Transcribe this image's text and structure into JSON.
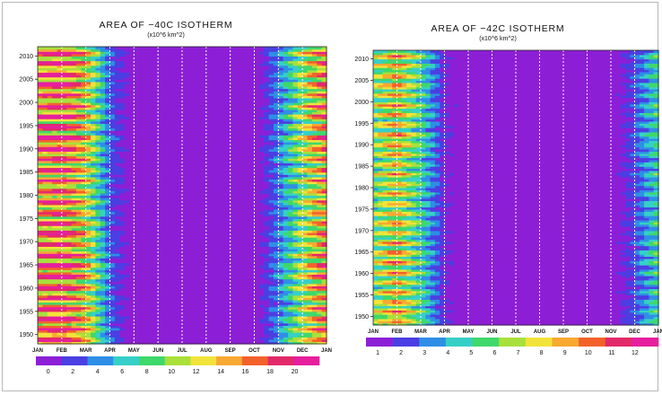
{
  "chart_data": [
    {
      "type": "heatmap",
      "title": "AREA OF −40C ISOTHERM",
      "subtitle": "(x10^6 km^2)",
      "x_categories": [
        "JAN",
        "FEB",
        "MAR",
        "APR",
        "MAY",
        "JUN",
        "JUL",
        "AUG",
        "SEP",
        "OCT",
        "NOV",
        "DEC",
        "JAN"
      ],
      "y_ticks": [
        1950,
        1955,
        1960,
        1965,
        1970,
        1975,
        1980,
        1985,
        1990,
        1995,
        2000,
        2005,
        2010
      ],
      "ylim": [
        1948,
        2012
      ],
      "colorbar_ticks": [
        0,
        2,
        4,
        6,
        8,
        10,
        12,
        14,
        16,
        18,
        20
      ],
      "colorbar_range": [
        -1,
        22
      ],
      "vmax": 21,
      "monthly_profile": [
        15.5,
        17.0,
        13.0,
        3.5,
        0.5,
        0.0,
        0.0,
        0.0,
        0.0,
        0.3,
        4.5,
        10.5,
        15.5
      ],
      "colors": [
        "#8c1fd6",
        "#4a3fe3",
        "#2f8ee6",
        "#36d0c8",
        "#3fd86a",
        "#a8e03c",
        "#f2e33a",
        "#f7a932",
        "#f3622b",
        "#e22a6a",
        "#e61f9e"
      ]
    },
    {
      "type": "heatmap",
      "title": "AREA OF −42C ISOTHERM",
      "subtitle": "(x10^6 km^2)",
      "x_categories": [
        "JAN",
        "FEB",
        "MAR",
        "APR",
        "MAY",
        "JUN",
        "JUL",
        "AUG",
        "SEP",
        "OCT",
        "NOV",
        "DEC",
        "JAN"
      ],
      "y_ticks": [
        1950,
        1955,
        1960,
        1965,
        1970,
        1975,
        1980,
        1985,
        1990,
        1995,
        2000,
        2005,
        2010
      ],
      "ylim": [
        1948,
        2012
      ],
      "colorbar_ticks": [
        1,
        2,
        3,
        4,
        5,
        6,
        7,
        8,
        9,
        10,
        11,
        12
      ],
      "colorbar_range": [
        0.5,
        13
      ],
      "vmax": 12,
      "monthly_profile": [
        5.5,
        7.5,
        4.5,
        1.0,
        0.2,
        0.0,
        0.0,
        0.0,
        0.0,
        0.0,
        0.2,
        1.8,
        4.5
      ],
      "colors": [
        "#8c1fd6",
        "#4a3fe3",
        "#2f8ee6",
        "#36d0c8",
        "#3fd86a",
        "#a8e03c",
        "#f2e33a",
        "#f7a932",
        "#f3622b",
        "#e22a6a",
        "#e61f9e"
      ]
    }
  ]
}
